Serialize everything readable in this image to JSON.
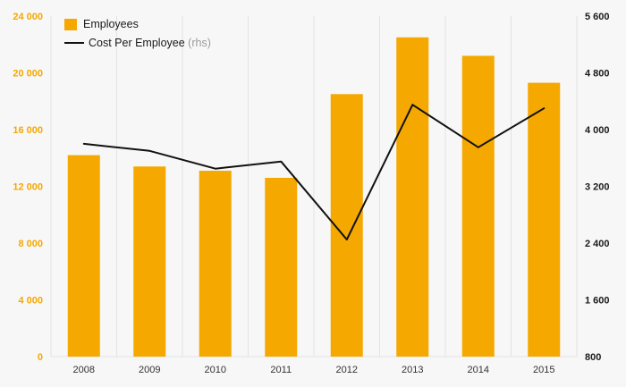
{
  "chart_data": {
    "type": "bar",
    "subtype": "bar+line combo, dual axis",
    "categories": [
      "2008",
      "2009",
      "2010",
      "2011",
      "2012",
      "2013",
      "2014",
      "2015"
    ],
    "series": [
      {
        "name": "Employees",
        "type": "bar",
        "axis": "left",
        "values": [
          14200,
          13400,
          13100,
          12600,
          18500,
          22500,
          21200,
          19300
        ]
      },
      {
        "name": "Cost Per Employee (rhs)",
        "type": "line",
        "axis": "right",
        "values": [
          3800,
          3700,
          3450,
          3550,
          2450,
          4350,
          3750,
          4300
        ]
      }
    ],
    "left_axis": {
      "min": 0,
      "max": 24000,
      "step": 4000,
      "tick_labels": [
        "0",
        "4 000",
        "8 000",
        "12 000",
        "16 000",
        "20 000",
        "24 000"
      ]
    },
    "right_axis": {
      "min": 800,
      "max": 5600,
      "step": 800,
      "tick_labels": [
        "800",
        "1 600",
        "2 400",
        "3 200",
        "4 000",
        "4 800",
        "5 600"
      ]
    },
    "grid": "vertical-only",
    "legend_position": "top-left",
    "title": "",
    "xlabel": "",
    "ylabel": ""
  },
  "legend": {
    "employees": "Employees",
    "cost": "Cost Per Employee",
    "rhs": " (rhs)"
  },
  "colors": {
    "bar": "#F5A800",
    "left_tick": "#F5A800",
    "right_tick": "#1a1a1a",
    "line": "#111111",
    "background": "#f7f7f7",
    "grid": "#e3e3e7",
    "year_label": "#333333"
  }
}
